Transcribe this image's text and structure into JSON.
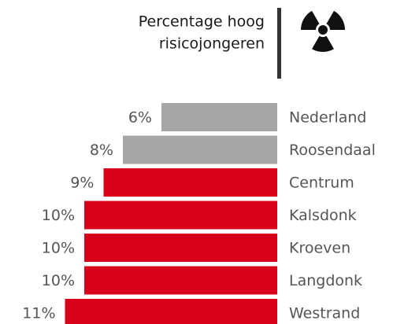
{
  "chart_data": {
    "type": "bar",
    "orientation": "horizontal-left",
    "title": [
      "Percentage hoog",
      "risicojongeren"
    ],
    "categories": [
      "Nederland",
      "Roosendaal",
      "Centrum",
      "Kalsdonk",
      "Kroeven",
      "Langdonk",
      "Westrand"
    ],
    "values": [
      6,
      8,
      9,
      10,
      10,
      10,
      11
    ],
    "value_labels": [
      "6%",
      "8%",
      "9%",
      "10%",
      "10%",
      "10%",
      "11%"
    ],
    "colors": [
      "#a6a6a6",
      "#a6a6a6",
      "#d9001b",
      "#d9001b",
      "#d9001b",
      "#d9001b",
      "#d9001b"
    ]
  }
}
